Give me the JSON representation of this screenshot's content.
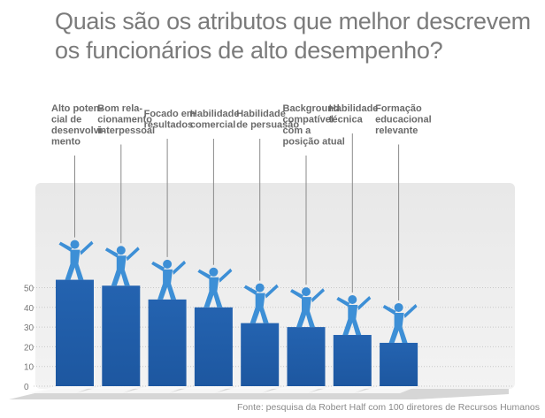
{
  "chart_data": {
    "type": "bar",
    "title": "Quais são os atributos que melhor descrevem os funcionários de alto desempenho?",
    "categories": [
      [
        "Alto poten-",
        "cial de",
        "desenvolvi-",
        "mento"
      ],
      [
        "Bom rela-",
        "cionamento",
        "interpessoal"
      ],
      [
        "Focado em",
        "resultados"
      ],
      [
        "Habilidade",
        "comercial"
      ],
      [
        "Habilidade",
        "de persuasão"
      ],
      [
        "Background",
        "compatível",
        "com a",
        "posição atual"
      ],
      [
        "Habilidade",
        "técnica"
      ],
      [
        "Formação",
        "educacional",
        "relevante"
      ]
    ],
    "values": [
      54,
      51,
      44,
      40,
      32,
      30,
      26,
      22
    ],
    "ylim": [
      0,
      60
    ],
    "yticks": [
      0,
      10,
      20,
      30,
      40,
      50
    ],
    "grid": true,
    "bar_color": "#2463b0",
    "figure_color": "#3d8fd6",
    "source": "Fonte: pesquisa da Robert Half com 100 diretores de Recursos Humanos"
  }
}
